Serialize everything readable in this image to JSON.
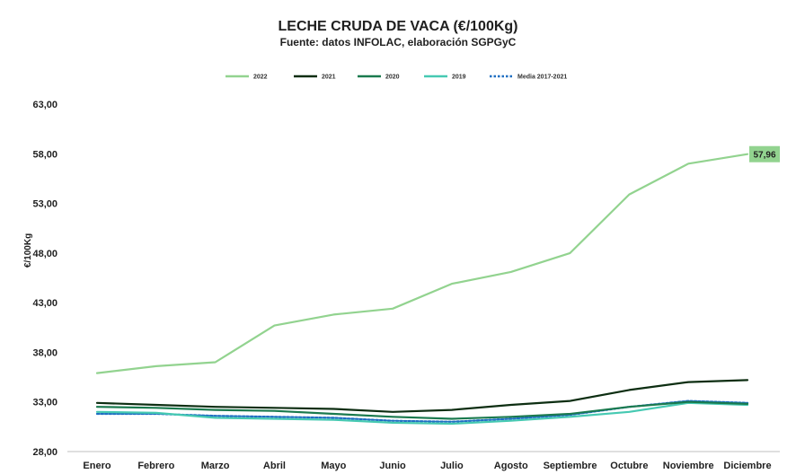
{
  "chart_data": {
    "type": "line",
    "title": "LECHE CRUDA DE VACA (€/100Kg)",
    "subtitle": "Fuente: datos INFOLAC, elaboración SGPGyC",
    "ylabel": "€/100Kg",
    "xlabel": "",
    "ylim": [
      28,
      63
    ],
    "yticks": [
      "28,00",
      "33,00",
      "38,00",
      "43,00",
      "48,00",
      "53,00",
      "58,00",
      "63,00"
    ],
    "ytick_values": [
      28,
      33,
      38,
      43,
      48,
      53,
      58,
      63
    ],
    "categories": [
      "Enero",
      "Febrero",
      "Marzo",
      "Abril",
      "Mayo",
      "Junio",
      "Julio",
      "Agosto",
      "Septiembre",
      "Octubre",
      "Noviembre",
      "Diciembre"
    ],
    "legend_position": "top",
    "grid": false,
    "series": [
      {
        "name": "2022",
        "color": "#92d38f",
        "dash": false,
        "width": 2.2,
        "values": [
          35.9,
          36.6,
          37.0,
          40.7,
          41.8,
          42.4,
          44.9,
          46.1,
          48.0,
          53.9,
          57.0,
          57.96
        ]
      },
      {
        "name": "2021",
        "color": "#0d2e12",
        "dash": false,
        "width": 2.2,
        "values": [
          32.9,
          32.7,
          32.5,
          32.4,
          32.3,
          32.0,
          32.2,
          32.7,
          33.1,
          34.2,
          35.0,
          35.2
        ]
      },
      {
        "name": "2020",
        "color": "#1a7a4e",
        "dash": false,
        "width": 2.2,
        "values": [
          32.5,
          32.4,
          32.2,
          32.1,
          31.8,
          31.5,
          31.3,
          31.5,
          31.8,
          32.5,
          33.0,
          32.8
        ]
      },
      {
        "name": "2019",
        "color": "#46c9b2",
        "dash": false,
        "width": 2.2,
        "values": [
          32.0,
          31.9,
          31.4,
          31.3,
          31.2,
          30.9,
          30.8,
          31.1,
          31.5,
          32.0,
          32.9,
          32.7
        ]
      },
      {
        "name": "Media 2017-2021",
        "color": "#1f6fc2",
        "dash": true,
        "width": 2.2,
        "values": [
          31.8,
          31.8,
          31.6,
          31.5,
          31.4,
          31.1,
          31.0,
          31.3,
          31.7,
          32.5,
          33.1,
          32.9
        ]
      }
    ],
    "annotations": [
      {
        "series": "2022",
        "category": "Diciembre",
        "label": "57,96",
        "background": "#92d38f"
      }
    ]
  }
}
